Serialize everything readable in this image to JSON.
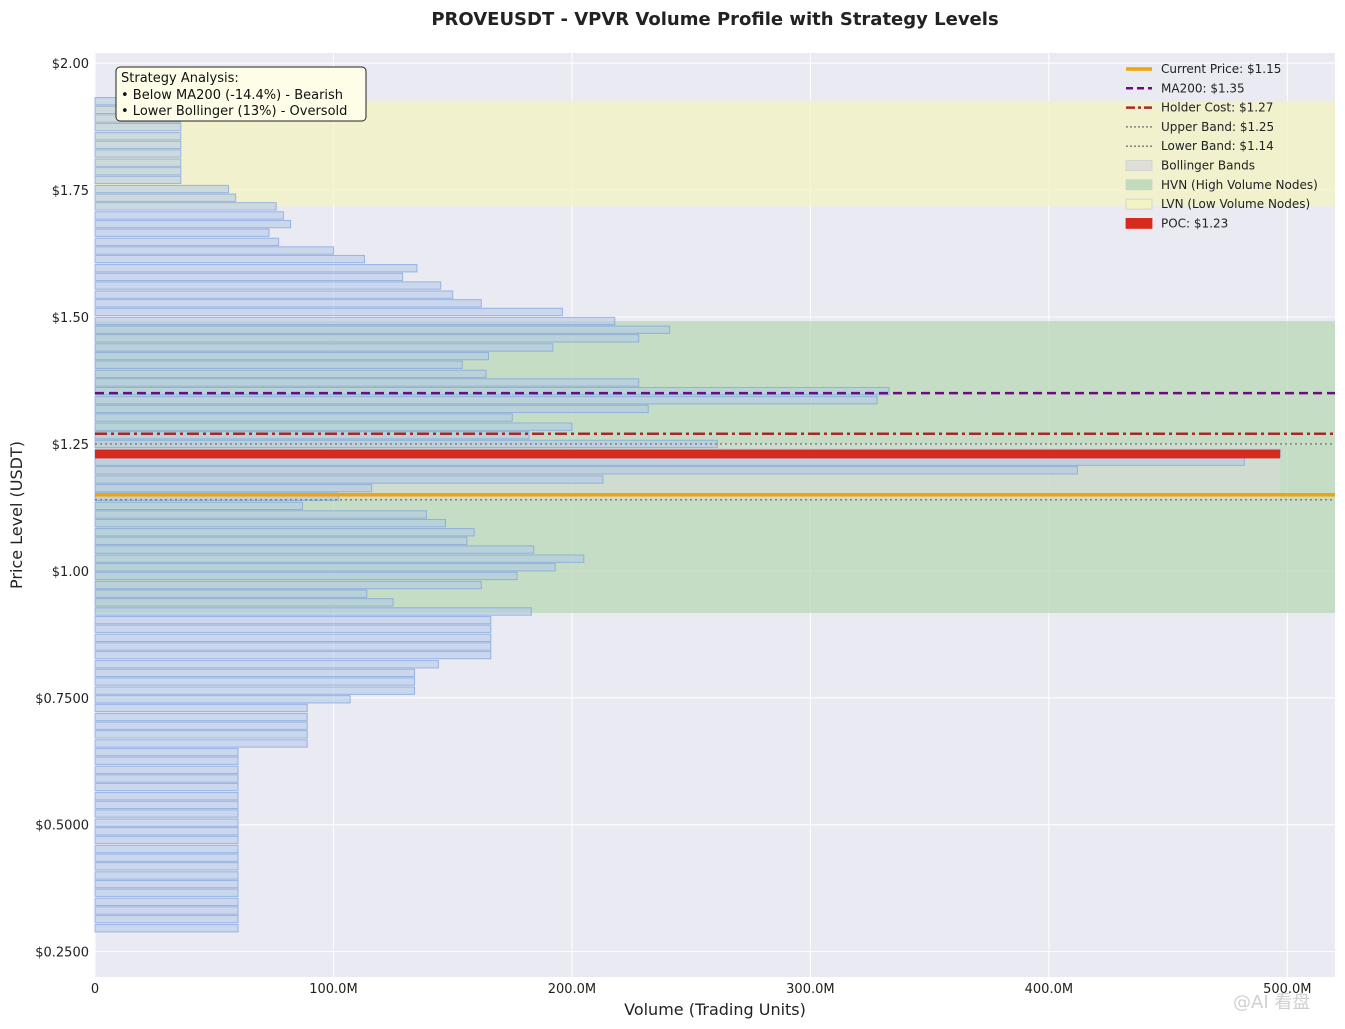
{
  "chart_data": {
    "type": "bar",
    "orientation": "horizontal",
    "title": "PROVEUSDT - VPVR Volume Profile with Strategy Levels",
    "xlabel": "Volume (Trading Units)",
    "ylabel": "Price Level (USDT)",
    "xlim": [
      0,
      520000000
    ],
    "ylim": [
      0.2,
      2.02
    ],
    "x_ticks": [
      0,
      100000000,
      200000000,
      300000000,
      400000000,
      500000000
    ],
    "x_tick_labels": [
      "0",
      "100.0M",
      "200.0M",
      "300.0M",
      "400.0M",
      "500.0M"
    ],
    "y_ticks": [
      0.25,
      0.5,
      0.75,
      1.0,
      1.25,
      1.5,
      1.75,
      2.0
    ],
    "y_tick_labels": [
      "$0.2500",
      "$0.5000",
      "$0.7500",
      "$1.00",
      "$1.25",
      "$1.50",
      "$1.75",
      "$2.00"
    ],
    "grid": true,
    "bar_width_price": 0.0145,
    "prices": [
      1.925,
      1.908,
      1.891,
      1.874,
      1.856,
      1.839,
      1.822,
      1.804,
      1.787,
      1.77,
      1.752,
      1.735,
      1.718,
      1.7,
      1.683,
      1.666,
      1.648,
      1.631,
      1.614,
      1.596,
      1.579,
      1.562,
      1.544,
      1.527,
      1.51,
      1.492,
      1.475,
      1.458,
      1.44,
      1.423,
      1.406,
      1.388,
      1.371,
      1.354,
      1.336,
      1.319,
      1.302,
      1.284,
      1.267,
      1.25,
      1.232,
      1.215,
      1.198,
      1.18,
      1.163,
      1.146,
      1.128,
      1.111,
      1.094,
      1.076,
      1.059,
      1.042,
      1.024,
      1.007,
      0.99,
      0.972,
      0.955,
      0.938,
      0.92,
      0.903,
      0.886,
      0.868,
      0.851,
      0.834,
      0.816,
      0.799,
      0.782,
      0.764,
      0.747,
      0.73,
      0.712,
      0.695,
      0.678,
      0.66,
      0.643,
      0.626,
      0.608,
      0.591,
      0.574,
      0.556,
      0.539,
      0.522,
      0.504,
      0.487,
      0.47,
      0.452,
      0.435,
      0.418,
      0.4,
      0.383,
      0.366,
      0.348,
      0.331,
      0.314,
      0.296
    ],
    "volumes": [
      36,
      36,
      36,
      36,
      36,
      36,
      36,
      36,
      36,
      36,
      56,
      59,
      76,
      79,
      82,
      73,
      77,
      100,
      113,
      135,
      129,
      145,
      150,
      162,
      196,
      218,
      241,
      228,
      192,
      165,
      154,
      164,
      228,
      333,
      328,
      232,
      175,
      200,
      182,
      261,
      497,
      482,
      412,
      213,
      116,
      102,
      87,
      139,
      147,
      159,
      156,
      184,
      205,
      193,
      177,
      162,
      114,
      125,
      183,
      166,
      166,
      166,
      166,
      166,
      144,
      134,
      134,
      134,
      107,
      89,
      89,
      89,
      89,
      89,
      60,
      60,
      60,
      60,
      60,
      60,
      60,
      60,
      60,
      60,
      60,
      60,
      60,
      60,
      60,
      60,
      60,
      60,
      60,
      60,
      60
    ],
    "volume_unit": "M",
    "levels": {
      "current_price": 1.15,
      "ma200": 1.35,
      "holder_cost": 1.27,
      "upper_band": 1.25,
      "lower_band": 1.14,
      "poc": 1.23
    },
    "bands": {
      "bollinger": [
        1.14,
        1.25
      ],
      "hvn": [
        0.917,
        1.492
      ],
      "lvn": [
        1.718,
        1.925
      ]
    },
    "colors": {
      "bar_fill": "#aec7e8",
      "bar_edge": "#7b9fe0",
      "current_price": "#f0a30a",
      "ma200": "#6a0d83",
      "holder_cost": "#a52a2a",
      "bands_line": "#808080",
      "hvn": "#b9d8b6",
      "lvn": "#f3f3c2",
      "bollinger": "#dcdcdc",
      "poc": "#d62a1f",
      "plot_bg": "#eaeaf2"
    },
    "legend": {
      "placement": "top-right",
      "items": [
        {
          "label": "Current Price: $1.15",
          "style": "line-solid",
          "color": "#f0a30a"
        },
        {
          "label": "MA200: $1.35",
          "style": "line-dashed",
          "color": "#6a0d83"
        },
        {
          "label": "Holder Cost: $1.27",
          "style": "line-dashdot",
          "color": "#a52a2a"
        },
        {
          "label": "Upper Band: $1.25",
          "style": "line-dotted",
          "color": "#808080"
        },
        {
          "label": "Lower Band: $1.14",
          "style": "line-dotted",
          "color": "#808080"
        },
        {
          "label": "Bollinger Bands",
          "style": "patch",
          "color": "#dcdcdc"
        },
        {
          "label": "HVN (High Volume Nodes)",
          "style": "patch",
          "color": "#b9d8b6"
        },
        {
          "label": "LVN (Low Volume Nodes)",
          "style": "patch",
          "color": "#f3f3c2"
        },
        {
          "label": "POC: $1.23",
          "style": "patch-solid",
          "color": "#d62a1f"
        }
      ]
    },
    "annotation": {
      "lines": [
        "Strategy Analysis:",
        "• Below MA200 (-14.4%) - Bearish",
        "• Lower Bollinger (13%) - Oversold"
      ]
    }
  },
  "watermark": "@AI 看盘"
}
